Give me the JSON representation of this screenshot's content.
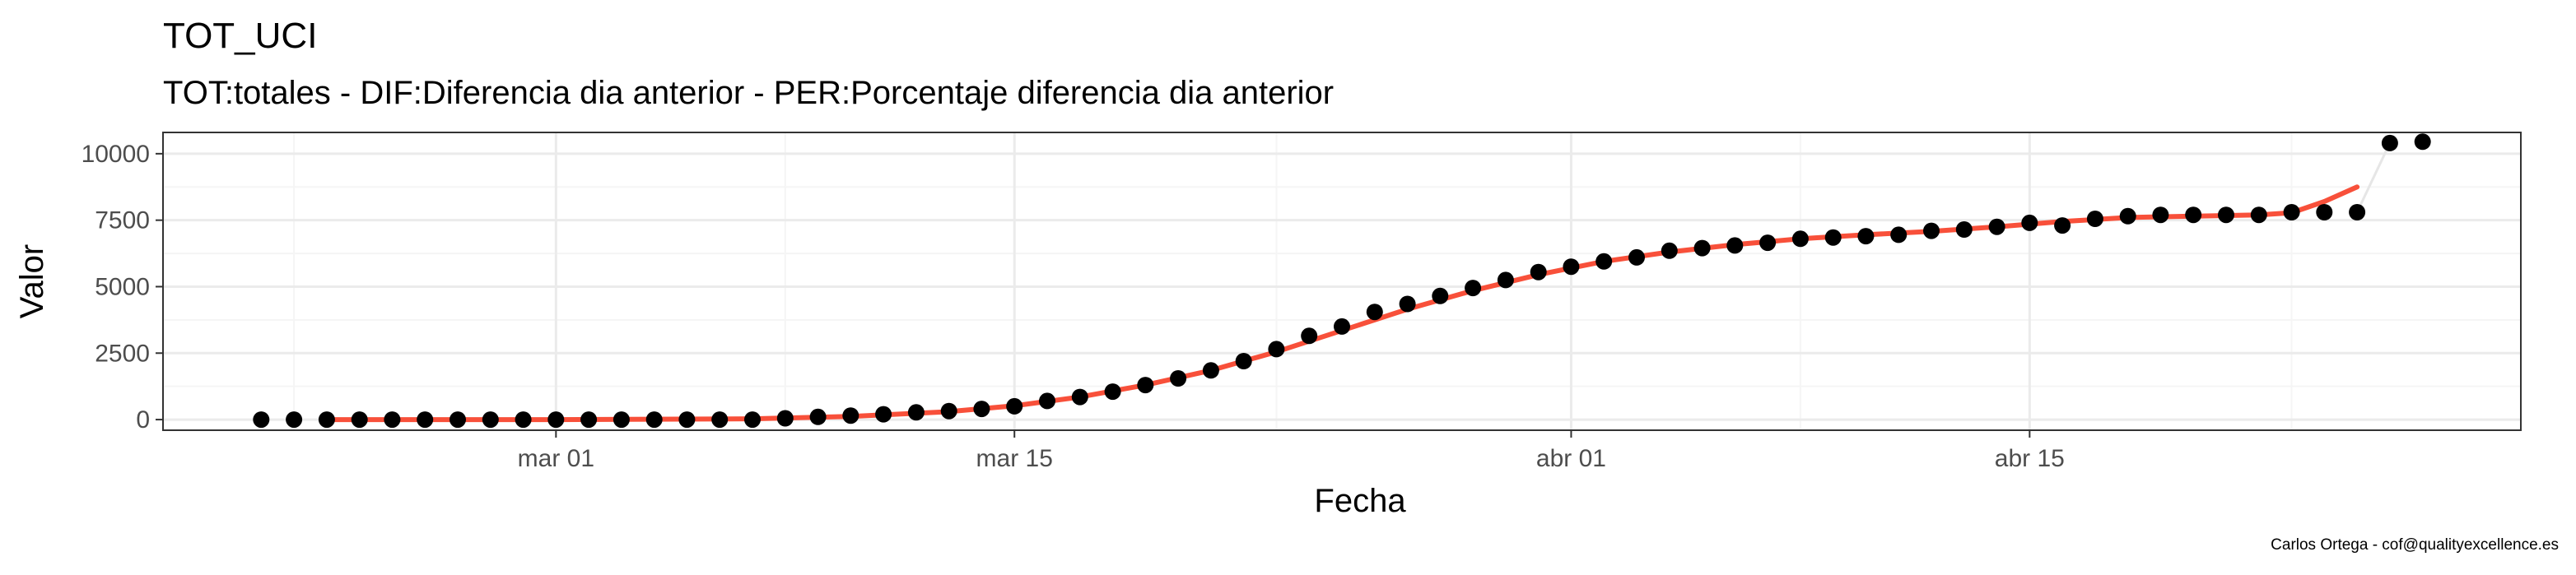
{
  "chart_data": {
    "type": "scatter",
    "title": "TOT_UCI",
    "subtitle": "TOT:totales - DIF:Diferencia dia anterior - PER:Porcentaje diferencia dia anterior",
    "xlabel": "Fecha",
    "ylabel": "Valor",
    "caption": "Carlos Ortega - cof@qualityexcellence.es",
    "x_range": [
      "2020-02-18",
      "2020-04-30"
    ],
    "ylim": [
      -400,
      10800
    ],
    "x_ticks": [
      {
        "date": "2020-03-01",
        "label": "mar 01"
      },
      {
        "date": "2020-03-15",
        "label": "mar 15"
      },
      {
        "date": "2020-04-01",
        "label": "abr 01"
      },
      {
        "date": "2020-04-15",
        "label": "abr 15"
      }
    ],
    "x_minor_gridlines": [
      "2020-02-22",
      "2020-03-08",
      "2020-03-23",
      "2020-04-08",
      "2020-04-23"
    ],
    "y_ticks": [
      0,
      2500,
      5000,
      7500,
      10000
    ],
    "grid": true,
    "points": {
      "color": "#000000",
      "data": [
        [
          "2020-02-21",
          0
        ],
        [
          "2020-02-22",
          0
        ],
        [
          "2020-02-23",
          0
        ],
        [
          "2020-02-24",
          0
        ],
        [
          "2020-02-25",
          0
        ],
        [
          "2020-02-26",
          0
        ],
        [
          "2020-02-27",
          0
        ],
        [
          "2020-02-28",
          0
        ],
        [
          "2020-02-29",
          0
        ],
        [
          "2020-03-01",
          0
        ],
        [
          "2020-03-02",
          0
        ],
        [
          "2020-03-03",
          0
        ],
        [
          "2020-03-04",
          0
        ],
        [
          "2020-03-05",
          0
        ],
        [
          "2020-03-06",
          0
        ],
        [
          "2020-03-07",
          0
        ],
        [
          "2020-03-08",
          50
        ],
        [
          "2020-03-09",
          100
        ],
        [
          "2020-03-10",
          150
        ],
        [
          "2020-03-11",
          200
        ],
        [
          "2020-03-12",
          270
        ],
        [
          "2020-03-13",
          320
        ],
        [
          "2020-03-14",
          400
        ],
        [
          "2020-03-15",
          500
        ],
        [
          "2020-03-16",
          700
        ],
        [
          "2020-03-17",
          850
        ],
        [
          "2020-03-18",
          1050
        ],
        [
          "2020-03-19",
          1300
        ],
        [
          "2020-03-20",
          1550
        ],
        [
          "2020-03-21",
          1850
        ],
        [
          "2020-03-22",
          2200
        ],
        [
          "2020-03-23",
          2650
        ],
        [
          "2020-03-24",
          3150
        ],
        [
          "2020-03-25",
          3500
        ],
        [
          "2020-03-26",
          4050
        ],
        [
          "2020-03-27",
          4350
        ],
        [
          "2020-03-28",
          4650
        ],
        [
          "2020-03-29",
          4950
        ],
        [
          "2020-03-30",
          5250
        ],
        [
          "2020-03-31",
          5550
        ],
        [
          "2020-04-01",
          5750
        ],
        [
          "2020-04-02",
          5950
        ],
        [
          "2020-04-03",
          6100
        ],
        [
          "2020-04-04",
          6350
        ],
        [
          "2020-04-05",
          6450
        ],
        [
          "2020-04-06",
          6550
        ],
        [
          "2020-04-07",
          6650
        ],
        [
          "2020-04-08",
          6800
        ],
        [
          "2020-04-09",
          6850
        ],
        [
          "2020-04-10",
          6900
        ],
        [
          "2020-04-11",
          6950
        ],
        [
          "2020-04-12",
          7100
        ],
        [
          "2020-04-13",
          7150
        ],
        [
          "2020-04-14",
          7250
        ],
        [
          "2020-04-15",
          7400
        ],
        [
          "2020-04-16",
          7300
        ],
        [
          "2020-04-17",
          7550
        ],
        [
          "2020-04-18",
          7650
        ],
        [
          "2020-04-19",
          7700
        ],
        [
          "2020-04-20",
          7700
        ],
        [
          "2020-04-21",
          7700
        ],
        [
          "2020-04-22",
          7700
        ],
        [
          "2020-04-23",
          7800
        ],
        [
          "2020-04-24",
          7800
        ],
        [
          "2020-04-25",
          7800
        ],
        [
          "2020-04-26",
          10400
        ],
        [
          "2020-04-27",
          10450
        ]
      ]
    },
    "connector": {
      "color": "#e6e6e6",
      "data": [
        [
          "2020-04-25",
          7800
        ],
        [
          "2020-04-26",
          10400
        ]
      ]
    },
    "trend_line": {
      "color": "#F8503A",
      "data": [
        [
          "2020-02-23",
          0
        ],
        [
          "2020-03-01",
          0
        ],
        [
          "2020-03-07",
          30
        ],
        [
          "2020-03-10",
          120
        ],
        [
          "2020-03-13",
          300
        ],
        [
          "2020-03-15",
          520
        ],
        [
          "2020-03-17",
          850
        ],
        [
          "2020-03-19",
          1300
        ],
        [
          "2020-03-21",
          1850
        ],
        [
          "2020-03-23",
          2550
        ],
        [
          "2020-03-25",
          3350
        ],
        [
          "2020-03-27",
          4150
        ],
        [
          "2020-03-29",
          4850
        ],
        [
          "2020-03-31",
          5450
        ],
        [
          "2020-04-02",
          5950
        ],
        [
          "2020-04-04",
          6300
        ],
        [
          "2020-04-06",
          6580
        ],
        [
          "2020-04-08",
          6800
        ],
        [
          "2020-04-10",
          6950
        ],
        [
          "2020-04-12",
          7080
        ],
        [
          "2020-04-14",
          7250
        ],
        [
          "2020-04-16",
          7450
        ],
        [
          "2020-04-18",
          7600
        ],
        [
          "2020-04-20",
          7650
        ],
        [
          "2020-04-22",
          7700
        ],
        [
          "2020-04-23",
          7780
        ],
        [
          "2020-04-24",
          8200
        ],
        [
          "2020-04-25",
          8750
        ]
      ]
    },
    "style": {
      "panel_border": "#333333",
      "grid_major": "#ebebeb",
      "grid_minor": "#f5f5f5",
      "tick_text": "#4d4d4d"
    }
  }
}
